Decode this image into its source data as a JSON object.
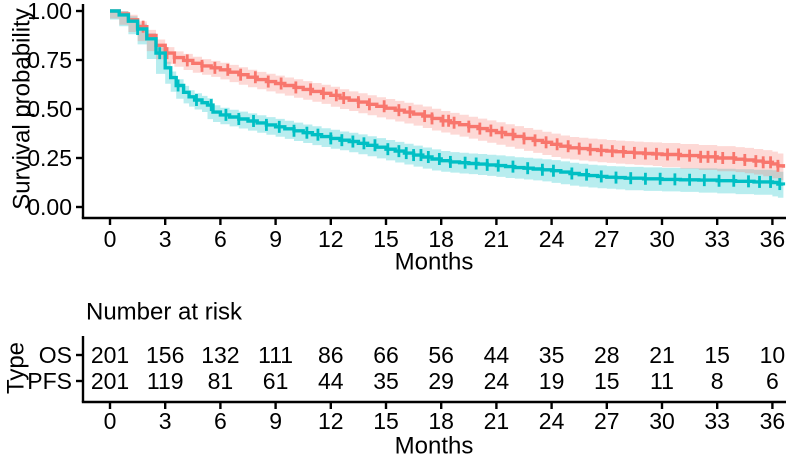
{
  "figure": {
    "background": "#ffffff",
    "text_color": "#000000",
    "axis_color": "#000000"
  },
  "chart_data": {
    "type": "line",
    "subtype": "kaplan-meier-survival",
    "title": "",
    "xlabel": "Months",
    "ylabel": "Survival probability",
    "xlim": [
      0,
      37
    ],
    "ylim": [
      0,
      1
    ],
    "xticks": [
      0,
      3,
      6,
      9,
      12,
      15,
      18,
      21,
      24,
      27,
      30,
      33,
      36
    ],
    "yticks": [
      0,
      0.25,
      0.5,
      0.75,
      1
    ],
    "ytick_labels": [
      "0.00",
      "0.25",
      "0.50",
      "0.75",
      "1.00"
    ],
    "grid": "off",
    "legend": "none (group labels shown in risk table)",
    "series": [
      {
        "name": "OS",
        "color": "#F8766D",
        "band_alpha": 0.28,
        "points": [
          [
            0,
            1.0
          ],
          [
            0.5,
            0.985
          ],
          [
            1,
            0.955
          ],
          [
            1.5,
            0.92
          ],
          [
            2,
            0.875
          ],
          [
            2.5,
            0.825
          ],
          [
            3,
            0.785
          ],
          [
            3.5,
            0.762
          ],
          [
            4,
            0.748
          ],
          [
            4.5,
            0.733
          ],
          [
            5,
            0.72
          ],
          [
            5.5,
            0.71
          ],
          [
            6,
            0.7
          ],
          [
            6.5,
            0.688
          ],
          [
            7,
            0.675
          ],
          [
            7.5,
            0.662
          ],
          [
            8,
            0.65
          ],
          [
            8.5,
            0.64
          ],
          [
            9,
            0.63
          ],
          [
            9.5,
            0.62
          ],
          [
            10,
            0.61
          ],
          [
            10.5,
            0.6
          ],
          [
            11,
            0.59
          ],
          [
            11.5,
            0.58
          ],
          [
            12,
            0.57
          ],
          [
            12.5,
            0.556
          ],
          [
            13,
            0.545
          ],
          [
            13.5,
            0.535
          ],
          [
            14,
            0.524
          ],
          [
            14.5,
            0.514
          ],
          [
            15,
            0.504
          ],
          [
            15.5,
            0.494
          ],
          [
            16,
            0.484
          ],
          [
            16.5,
            0.474
          ],
          [
            17,
            0.464
          ],
          [
            17.5,
            0.452
          ],
          [
            18,
            0.44
          ],
          [
            18.5,
            0.43
          ],
          [
            19,
            0.42
          ],
          [
            19.5,
            0.41
          ],
          [
            20,
            0.4
          ],
          [
            20.5,
            0.39
          ],
          [
            21,
            0.38
          ],
          [
            21.5,
            0.37
          ],
          [
            22,
            0.36
          ],
          [
            22.5,
            0.35
          ],
          [
            23,
            0.34
          ],
          [
            23.5,
            0.33
          ],
          [
            24,
            0.32
          ],
          [
            24.5,
            0.31
          ],
          [
            25,
            0.302
          ],
          [
            25.5,
            0.298
          ],
          [
            26,
            0.293
          ],
          [
            26.5,
            0.289
          ],
          [
            27,
            0.285
          ],
          [
            27.5,
            0.282
          ],
          [
            28,
            0.279
          ],
          [
            28.5,
            0.276
          ],
          [
            29,
            0.273
          ],
          [
            29.5,
            0.271
          ],
          [
            30,
            0.268
          ],
          [
            31,
            0.262
          ],
          [
            32,
            0.256
          ],
          [
            33,
            0.25
          ],
          [
            34,
            0.244
          ],
          [
            34.5,
            0.24
          ],
          [
            35,
            0.234
          ],
          [
            35.5,
            0.228
          ],
          [
            36,
            0.22
          ],
          [
            36.3,
            0.21
          ],
          [
            36.6,
            0.2
          ]
        ],
        "censor_times": [
          1.8,
          3.1,
          3.5,
          4.2,
          5.0,
          5.7,
          6.4,
          7.1,
          7.9,
          8.6,
          9.3,
          10.1,
          10.9,
          11.6,
          12.3,
          12.7,
          13.5,
          14.1,
          14.9,
          15.7,
          16.3,
          17.1,
          17.5,
          18.1,
          18.4,
          18.7,
          19.5,
          20.1,
          20.7,
          21.3,
          21.9,
          22.5,
          23.1,
          23.7,
          24.3,
          24.9,
          25.5,
          26.1,
          26.7,
          27.3,
          27.9,
          28.5,
          29.1,
          29.7,
          30.3,
          30.9,
          31.5,
          32.1,
          32.5,
          32.9,
          33.3,
          33.9,
          34.5,
          35.1,
          35.5,
          35.9,
          36.3
        ]
      },
      {
        "name": "PFS",
        "color": "#00BFC4",
        "band_alpha": 0.28,
        "points": [
          [
            0,
            1.0
          ],
          [
            0.5,
            0.98
          ],
          [
            1,
            0.948
          ],
          [
            1.5,
            0.908
          ],
          [
            2,
            0.858
          ],
          [
            2.5,
            0.785
          ],
          [
            3,
            0.71
          ],
          [
            3.3,
            0.66
          ],
          [
            3.6,
            0.62
          ],
          [
            4,
            0.585
          ],
          [
            4.3,
            0.562
          ],
          [
            4.6,
            0.546
          ],
          [
            5,
            0.532
          ],
          [
            5.3,
            0.52
          ],
          [
            5.6,
            0.484
          ],
          [
            6,
            0.47
          ],
          [
            6.5,
            0.459
          ],
          [
            7,
            0.449
          ],
          [
            7.5,
            0.439
          ],
          [
            8,
            0.429
          ],
          [
            8.5,
            0.419
          ],
          [
            9,
            0.409
          ],
          [
            9.5,
            0.399
          ],
          [
            10,
            0.389
          ],
          [
            10.5,
            0.379
          ],
          [
            11,
            0.369
          ],
          [
            11.5,
            0.359
          ],
          [
            12,
            0.35
          ],
          [
            12.5,
            0.341
          ],
          [
            13,
            0.334
          ],
          [
            13.5,
            0.325
          ],
          [
            14,
            0.315
          ],
          [
            14.5,
            0.305
          ],
          [
            15,
            0.295
          ],
          [
            15.5,
            0.285
          ],
          [
            16,
            0.275
          ],
          [
            16.5,
            0.265
          ],
          [
            17,
            0.255
          ],
          [
            17.5,
            0.245
          ],
          [
            18,
            0.236
          ],
          [
            18.5,
            0.23
          ],
          [
            19,
            0.226
          ],
          [
            19.5,
            0.222
          ],
          [
            20,
            0.219
          ],
          [
            20.5,
            0.215
          ],
          [
            21,
            0.211
          ],
          [
            21.5,
            0.206
          ],
          [
            22,
            0.201
          ],
          [
            22.5,
            0.198
          ],
          [
            23,
            0.194
          ],
          [
            23.5,
            0.19
          ],
          [
            24,
            0.185
          ],
          [
            24.5,
            0.178
          ],
          [
            25,
            0.171
          ],
          [
            25.5,
            0.165
          ],
          [
            26,
            0.16
          ],
          [
            26.5,
            0.156
          ],
          [
            27,
            0.152
          ],
          [
            27.5,
            0.15
          ],
          [
            28,
            0.147
          ],
          [
            29,
            0.144
          ],
          [
            30,
            0.141
          ],
          [
            31,
            0.139
          ],
          [
            32,
            0.137
          ],
          [
            33,
            0.134
          ],
          [
            34,
            0.131
          ],
          [
            35,
            0.128
          ],
          [
            36,
            0.125
          ],
          [
            36.3,
            0.117
          ],
          [
            36.6,
            0.11
          ]
        ],
        "censor_times": [
          1.5,
          2.7,
          3.7,
          4.7,
          5.5,
          6.3,
          7.0,
          7.8,
          8.5,
          9.2,
          10.0,
          10.7,
          11.3,
          12.0,
          12.6,
          13.2,
          13.8,
          14.4,
          15.1,
          15.7,
          16.1,
          16.5,
          16.9,
          17.3,
          17.9,
          18.5,
          19.3,
          19.9,
          20.5,
          21.1,
          21.9,
          22.7,
          23.5,
          24.1,
          25.1,
          25.9,
          26.7,
          27.5,
          28.3,
          29.1,
          29.9,
          30.7,
          31.5,
          32.3,
          33.1,
          33.9,
          34.7,
          35.3,
          35.9,
          36.4
        ]
      }
    ],
    "risk_table": {
      "title": "Number at risk",
      "axis_label": "Type",
      "xlabel": "Months",
      "times": [
        0,
        3,
        6,
        9,
        12,
        15,
        18,
        21,
        24,
        27,
        30,
        33,
        36
      ],
      "rows": [
        {
          "name": "OS",
          "color": "#F8766D",
          "counts": [
            201,
            156,
            132,
            111,
            86,
            66,
            56,
            44,
            35,
            28,
            21,
            15,
            10
          ]
        },
        {
          "name": "PFS",
          "color": "#00BFC4",
          "counts": [
            201,
            119,
            81,
            61,
            44,
            35,
            29,
            24,
            19,
            15,
            11,
            8,
            6
          ]
        }
      ]
    }
  }
}
